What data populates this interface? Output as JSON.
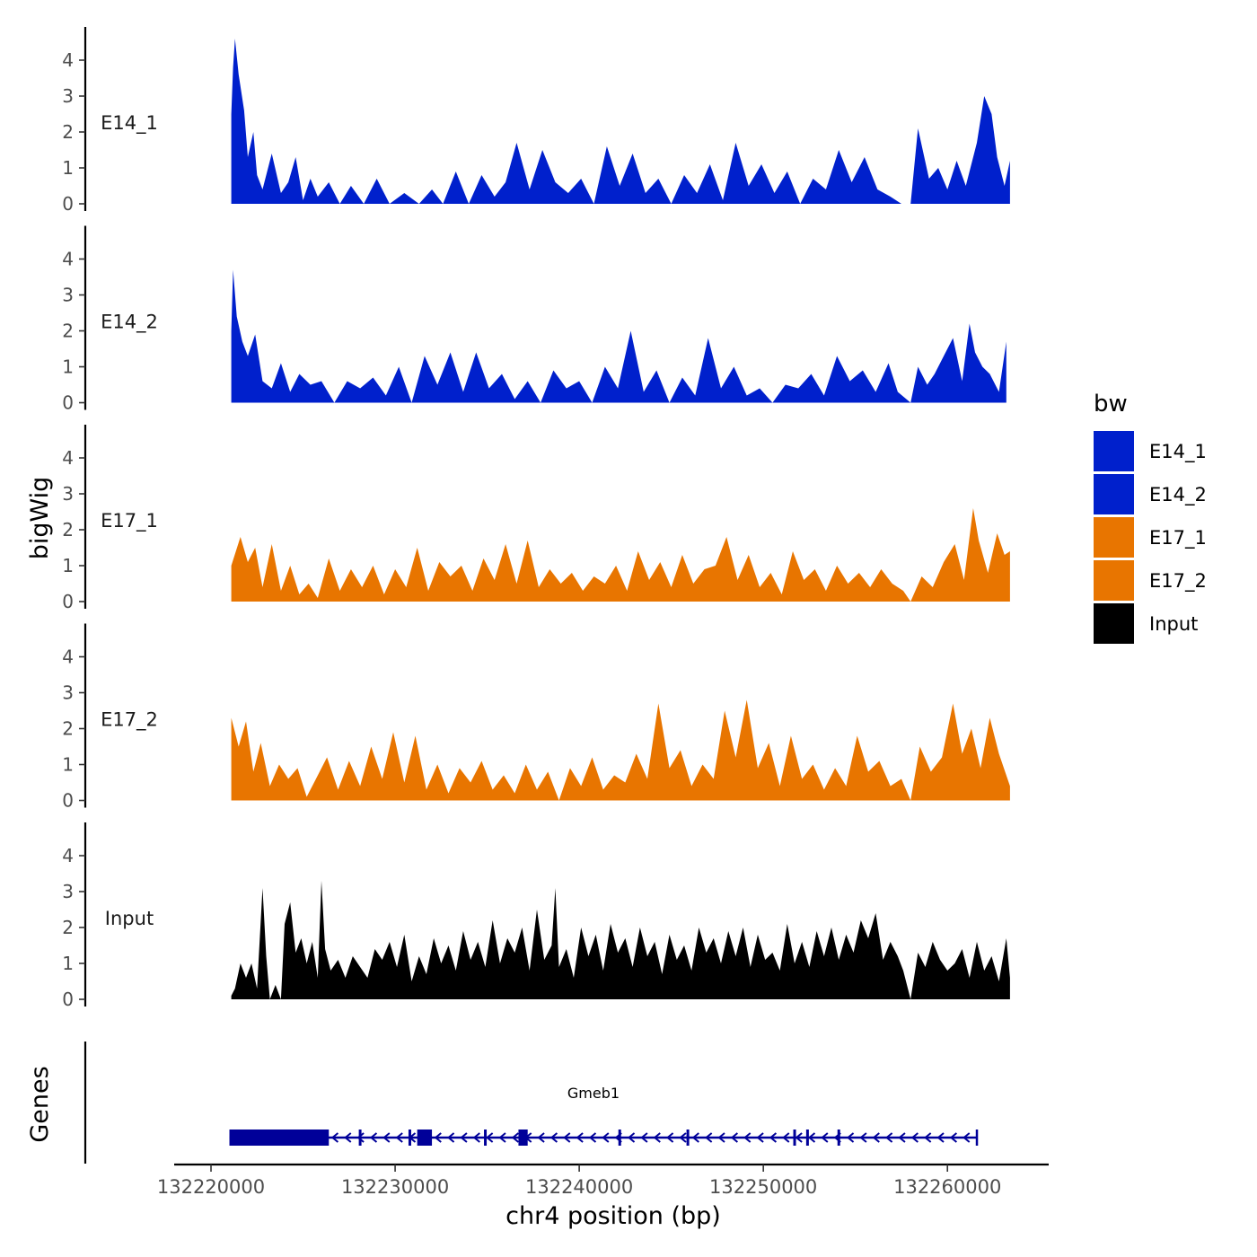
{
  "chart_data": {
    "type": "area",
    "ylabel": "bigWig",
    "genes_label": "Genes",
    "xlabel": "chr4 position (bp)",
    "xlim": [
      132218000,
      132265500
    ],
    "x_ticks": [
      132220000,
      132230000,
      132240000,
      132250000,
      132260000
    ],
    "x_tick_labels": [
      "132220000",
      "132230000",
      "132240000",
      "132250000",
      "132260000"
    ],
    "ylim": [
      0,
      5
    ],
    "y_ticks": [
      0,
      1,
      2,
      3,
      4
    ],
    "y_tick_labels": [
      "0",
      "1",
      "2",
      "3",
      "4"
    ],
    "legend": {
      "title": "bw",
      "position": "right",
      "entries": [
        {
          "label": "E14_1",
          "color": "#0020cc"
        },
        {
          "label": "E14_2",
          "color": "#0020cc"
        },
        {
          "label": "E17_1",
          "color": "#e87500"
        },
        {
          "label": "E17_2",
          "color": "#e87500"
        },
        {
          "label": "Input",
          "color": "#000000"
        }
      ]
    },
    "series": [
      {
        "name": "E14_1",
        "color": "#0020cc",
        "x": [
          132221100,
          132221200,
          132221300,
          132221500,
          132221800,
          132222000,
          132222300,
          132222500,
          132222800,
          132223300,
          132223800,
          132224200,
          132224600,
          132225000,
          132225400,
          132225800,
          132226400,
          132227000,
          132227600,
          132228300,
          132229000,
          132229700,
          132230500,
          132231300,
          132232000,
          132232600,
          132233300,
          132234000,
          132234700,
          132235400,
          132236000,
          132236600,
          132237300,
          132238000,
          132238700,
          132239400,
          132240100,
          132240800,
          132241500,
          132242200,
          132242900,
          132243600,
          132244300,
          132245000,
          132245700,
          132246400,
          132247100,
          132247800,
          132248500,
          132249200,
          132249900,
          132250600,
          132251300,
          132252000,
          132252700,
          132253400,
          132254100,
          132254800,
          132255500,
          132256200,
          132256900,
          132257500,
          132258000,
          132258400,
          132259000,
          132259500,
          132260000,
          132260500,
          132261000,
          132261600,
          132262000,
          132262400,
          132262700,
          132263100,
          132263400
        ],
        "values": [
          2.5,
          3.8,
          4.6,
          3.6,
          2.6,
          1.3,
          2.0,
          0.8,
          0.4,
          1.4,
          0.3,
          0.6,
          1.3,
          0.1,
          0.7,
          0.2,
          0.6,
          0.0,
          0.5,
          0.0,
          0.7,
          0.0,
          0.3,
          0.0,
          0.4,
          0.0,
          0.9,
          0.0,
          0.8,
          0.2,
          0.6,
          1.7,
          0.4,
          1.5,
          0.6,
          0.3,
          0.7,
          0.0,
          1.6,
          0.5,
          1.4,
          0.3,
          0.7,
          0.0,
          0.8,
          0.3,
          1.1,
          0.1,
          1.7,
          0.5,
          1.1,
          0.3,
          0.9,
          0.0,
          0.7,
          0.4,
          1.5,
          0.6,
          1.3,
          0.4,
          0.2,
          0.0,
          0.0,
          2.1,
          0.7,
          1.0,
          0.4,
          1.2,
          0.5,
          1.7,
          3.0,
          2.5,
          1.3,
          0.5,
          1.2
        ]
      },
      {
        "name": "E14_2",
        "color": "#0020cc",
        "x": [
          132221100,
          132221200,
          132221400,
          132221700,
          132222000,
          132222400,
          132222800,
          132223300,
          132223800,
          132224300,
          132224800,
          132225400,
          132226000,
          132226700,
          132227400,
          132228100,
          132228800,
          132229500,
          132230200,
          132230900,
          132231600,
          132232300,
          132233000,
          132233700,
          132234400,
          132235100,
          132235800,
          132236500,
          132237200,
          132237900,
          132238600,
          132239300,
          132240000,
          132240700,
          132241400,
          132242100,
          132242800,
          132243500,
          132244200,
          132244900,
          132245600,
          132246300,
          132247000,
          132247700,
          132248400,
          132249100,
          132249800,
          132250500,
          132251200,
          132251900,
          132252600,
          132253300,
          132254000,
          132254700,
          132255400,
          132256100,
          132256800,
          132257300,
          132258000,
          132258400,
          132258900,
          132259300,
          132259800,
          132260300,
          132260800,
          132261200,
          132261500,
          132261900,
          132262300,
          132262800,
          132263200
        ],
        "values": [
          2.0,
          3.7,
          2.4,
          1.7,
          1.3,
          1.9,
          0.6,
          0.4,
          1.1,
          0.3,
          0.8,
          0.5,
          0.6,
          0.0,
          0.6,
          0.4,
          0.7,
          0.2,
          1.0,
          0.0,
          1.3,
          0.5,
          1.4,
          0.3,
          1.4,
          0.4,
          0.8,
          0.1,
          0.6,
          0.0,
          0.9,
          0.4,
          0.6,
          0.0,
          1.0,
          0.4,
          2.0,
          0.3,
          0.9,
          0.0,
          0.7,
          0.2,
          1.8,
          0.4,
          1.0,
          0.2,
          0.4,
          0.0,
          0.5,
          0.4,
          0.8,
          0.2,
          1.3,
          0.6,
          0.9,
          0.3,
          1.1,
          0.3,
          0.0,
          1.0,
          0.5,
          0.8,
          1.3,
          1.8,
          0.6,
          2.2,
          1.4,
          1.0,
          0.8,
          0.3,
          1.7
        ]
      },
      {
        "name": "E17_1",
        "color": "#e87500",
        "x": [
          132221100,
          132221600,
          132222000,
          132222400,
          132222800,
          132223300,
          132223800,
          132224300,
          132224800,
          132225300,
          132225800,
          132226400,
          132227000,
          132227600,
          132228200,
          132228800,
          132229400,
          132230000,
          132230600,
          132231200,
          132231800,
          132232400,
          132233000,
          132233600,
          132234200,
          132234800,
          132235400,
          132236000,
          132236600,
          132237200,
          132237800,
          132238400,
          132239000,
          132239600,
          132240200,
          132240800,
          132241400,
          132242000,
          132242600,
          132243200,
          132243800,
          132244400,
          132245000,
          132245600,
          132246200,
          132246800,
          132247400,
          132248000,
          132248600,
          132249200,
          132249800,
          132250400,
          132251000,
          132251600,
          132252200,
          132252800,
          132253400,
          132254000,
          132254600,
          132255200,
          132255800,
          132256400,
          132257000,
          132257600,
          132258000,
          132258600,
          132259200,
          132259800,
          132260400,
          132260900,
          132261400,
          132261700,
          132262200,
          132262700,
          132263100,
          132263400
        ],
        "values": [
          1.0,
          1.8,
          1.1,
          1.5,
          0.4,
          1.6,
          0.3,
          1.0,
          0.2,
          0.5,
          0.1,
          1.2,
          0.3,
          0.9,
          0.4,
          1.0,
          0.2,
          0.9,
          0.4,
          1.5,
          0.3,
          1.1,
          0.7,
          1.0,
          0.3,
          1.2,
          0.6,
          1.6,
          0.5,
          1.7,
          0.4,
          0.9,
          0.5,
          0.8,
          0.3,
          0.7,
          0.5,
          1.0,
          0.3,
          1.4,
          0.6,
          1.1,
          0.4,
          1.3,
          0.5,
          0.9,
          1.0,
          1.8,
          0.6,
          1.3,
          0.4,
          0.8,
          0.2,
          1.4,
          0.6,
          0.9,
          0.3,
          1.0,
          0.5,
          0.8,
          0.4,
          0.9,
          0.5,
          0.3,
          0.0,
          0.7,
          0.4,
          1.1,
          1.6,
          0.6,
          2.6,
          1.7,
          0.8,
          1.9,
          1.3,
          1.4
        ]
      },
      {
        "name": "E17_2",
        "color": "#e87500",
        "x": [
          132221100,
          132221500,
          132221900,
          132222300,
          132222700,
          132223200,
          132223700,
          132224200,
          132224700,
          132225200,
          132225700,
          132226300,
          132226900,
          132227500,
          132228100,
          132228700,
          132229300,
          132229900,
          132230500,
          132231100,
          132231700,
          132232300,
          132232900,
          132233500,
          132234100,
          132234700,
          132235300,
          132235900,
          132236500,
          132237100,
          132237700,
          132238300,
          132238900,
          132239500,
          132240100,
          132240700,
          132241300,
          132241900,
          132242500,
          132243100,
          132243700,
          132244300,
          132244900,
          132245500,
          132246100,
          132246700,
          132247300,
          132247900,
          132248500,
          132249100,
          132249700,
          132250300,
          132250900,
          132251500,
          132252100,
          132252700,
          132253300,
          132253900,
          132254500,
          132255100,
          132255700,
          132256300,
          132256900,
          132257500,
          132258000,
          132258500,
          132259100,
          132259700,
          132260300,
          132260800,
          132261300,
          132261800,
          132262300,
          132262800,
          132263400
        ],
        "values": [
          2.3,
          1.5,
          2.2,
          0.8,
          1.6,
          0.4,
          1.0,
          0.6,
          0.9,
          0.1,
          0.6,
          1.2,
          0.3,
          1.1,
          0.4,
          1.5,
          0.6,
          1.9,
          0.5,
          1.8,
          0.3,
          1.0,
          0.2,
          0.9,
          0.5,
          1.1,
          0.3,
          0.7,
          0.2,
          1.0,
          0.3,
          0.8,
          0.0,
          0.9,
          0.4,
          1.2,
          0.3,
          0.7,
          0.5,
          1.3,
          0.6,
          2.7,
          0.9,
          1.4,
          0.4,
          1.0,
          0.6,
          2.5,
          1.2,
          2.8,
          0.9,
          1.6,
          0.4,
          1.8,
          0.6,
          1.0,
          0.3,
          0.9,
          0.4,
          1.8,
          0.8,
          1.1,
          0.4,
          0.6,
          0.0,
          1.5,
          0.8,
          1.2,
          2.7,
          1.3,
          2.0,
          0.9,
          2.3,
          1.3,
          0.4
        ]
      },
      {
        "name": "Input",
        "color": "#000000",
        "x": [
          132221100,
          132221300,
          132221600,
          132221900,
          132222200,
          132222500,
          132222800,
          132223000,
          132223200,
          132223500,
          132223800,
          132224000,
          132224300,
          132224600,
          132224900,
          132225200,
          132225500,
          132225800,
          132226000,
          132226200,
          132226500,
          132226900,
          132227300,
          132227700,
          132228100,
          132228500,
          132228900,
          132229300,
          132229700,
          132230100,
          132230500,
          132230900,
          132231300,
          132231700,
          132232100,
          132232500,
          132232900,
          132233300,
          132233700,
          132234100,
          132234500,
          132234900,
          132235300,
          132235700,
          132236100,
          132236500,
          132236900,
          132237300,
          132237700,
          132238100,
          132238500,
          132238700,
          132238900,
          132239300,
          132239700,
          132240100,
          132240500,
          132240900,
          132241300,
          132241700,
          132242100,
          132242500,
          132242900,
          132243300,
          132243700,
          132244100,
          132244500,
          132244900,
          132245300,
          132245700,
          132246100,
          132246500,
          132246900,
          132247300,
          132247700,
          132248100,
          132248500,
          132248900,
          132249300,
          132249700,
          132250100,
          132250500,
          132250900,
          132251300,
          132251700,
          132252100,
          132252500,
          132252900,
          132253300,
          132253700,
          132254100,
          132254500,
          132254900,
          132255300,
          132255700,
          132256100,
          132256500,
          132256900,
          132257300,
          132257600,
          132258000,
          132258400,
          132258800,
          132259200,
          132259600,
          132260000,
          132260400,
          132260800,
          132261200,
          132261600,
          132262000,
          132262400,
          132262800,
          132263200,
          132263400
        ],
        "values": [
          0.1,
          0.3,
          1.0,
          0.6,
          1.0,
          0.3,
          3.1,
          1.2,
          0.0,
          0.4,
          0.0,
          2.1,
          2.7,
          1.3,
          1.7,
          1.0,
          1.6,
          0.6,
          3.3,
          1.4,
          0.8,
          1.1,
          0.6,
          1.2,
          0.9,
          0.6,
          1.4,
          1.1,
          1.6,
          0.9,
          1.8,
          0.5,
          1.2,
          0.7,
          1.7,
          1.0,
          1.5,
          0.8,
          1.9,
          1.1,
          1.6,
          0.9,
          2.2,
          1.0,
          1.7,
          1.3,
          2.0,
          0.8,
          2.5,
          1.1,
          1.5,
          3.1,
          0.9,
          1.4,
          0.6,
          2.0,
          1.2,
          1.8,
          0.8,
          2.1,
          1.3,
          1.7,
          0.9,
          2.0,
          1.2,
          1.6,
          0.7,
          1.8,
          1.1,
          1.5,
          0.8,
          2.0,
          1.3,
          1.7,
          1.0,
          1.9,
          1.2,
          2.0,
          0.9,
          1.8,
          1.1,
          1.3,
          0.8,
          2.1,
          1.0,
          1.6,
          0.9,
          1.9,
          1.2,
          2.0,
          1.1,
          1.8,
          1.3,
          2.2,
          1.7,
          2.4,
          1.1,
          1.6,
          1.2,
          0.8,
          0.0,
          1.3,
          0.9,
          1.6,
          1.1,
          0.8,
          1.0,
          1.4,
          0.6,
          1.6,
          0.8,
          1.2,
          0.5,
          1.7,
          0.6
        ]
      }
    ],
    "gene": {
      "name": "Gmeb1",
      "color": "#000099",
      "strand": "-",
      "start": 132221000,
      "end": 132261600,
      "exons": [
        [
          132221000,
          132226400
        ],
        [
          132231200,
          132232000
        ],
        [
          132236700,
          132237200
        ]
      ],
      "junction_ticks": [
        132228100,
        132230800,
        132234900,
        132242200,
        132245900,
        132251700,
        132252400,
        132254100
      ]
    }
  }
}
